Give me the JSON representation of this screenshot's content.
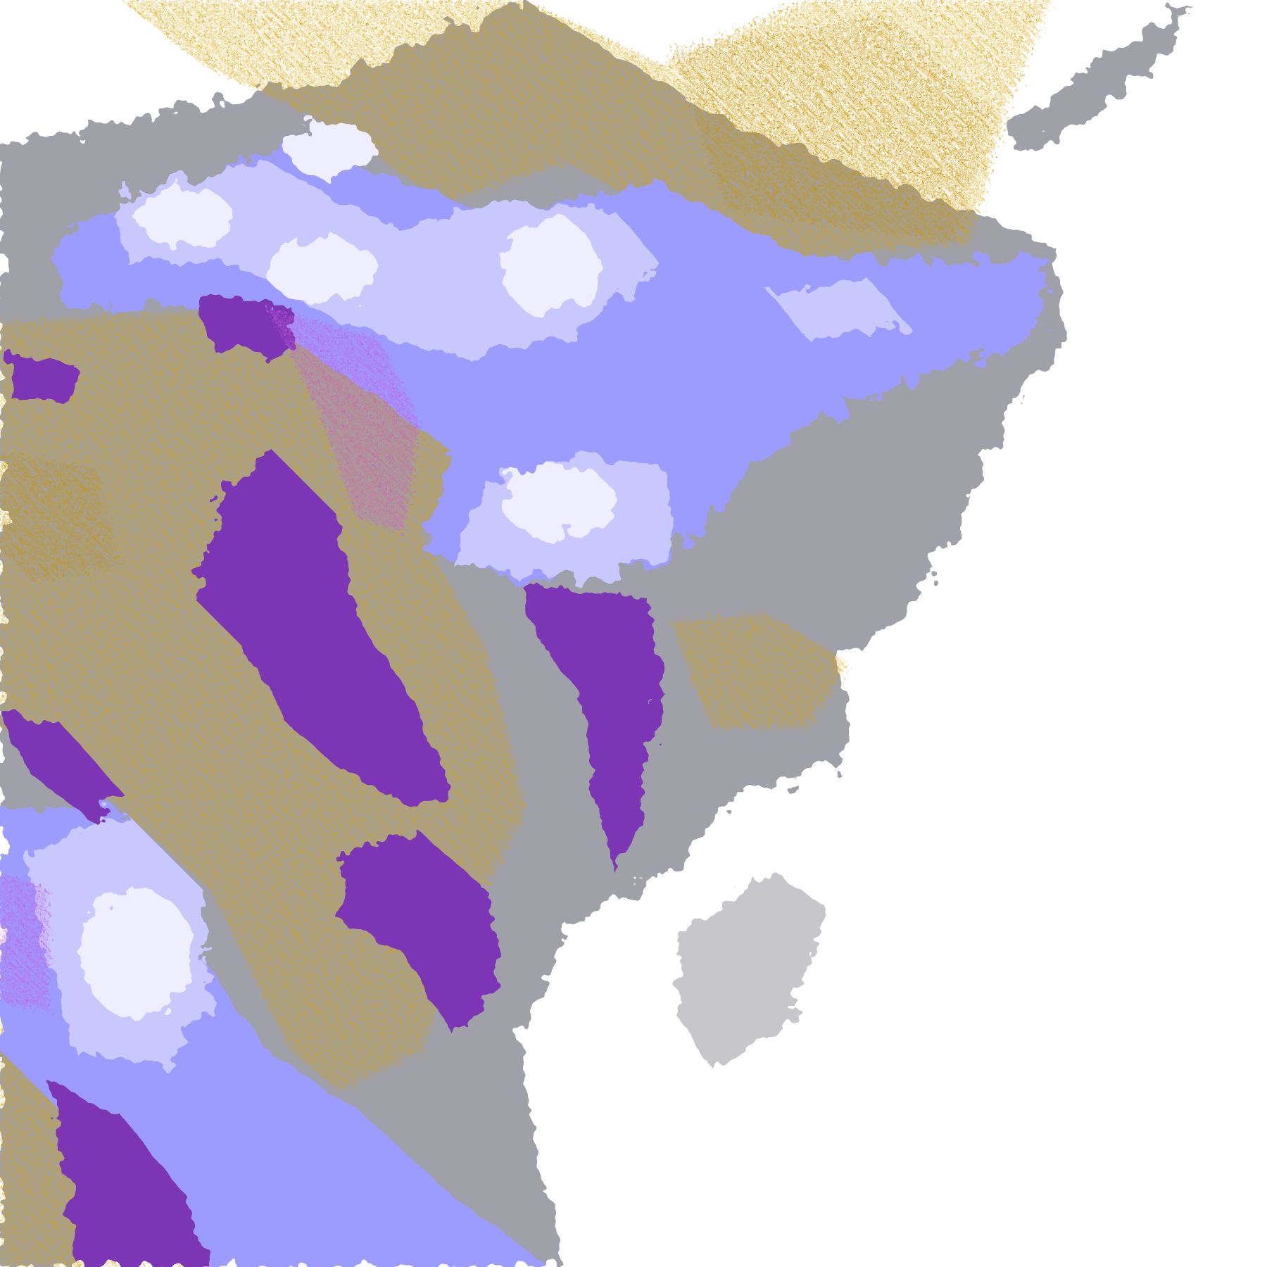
{
  "map": {
    "type": "classified satellite imagery",
    "colors": {
      "background": "#ffffff",
      "gold": "#d4a20a",
      "dark_gold": "#b8860b",
      "purple": "#7b35b5",
      "magenta": "#c85ae0",
      "gray": "#a0a0a8",
      "periwinkle": "#9c9cff",
      "lavender": "#c8c8ff",
      "pale": "#eeeeff"
    }
  }
}
